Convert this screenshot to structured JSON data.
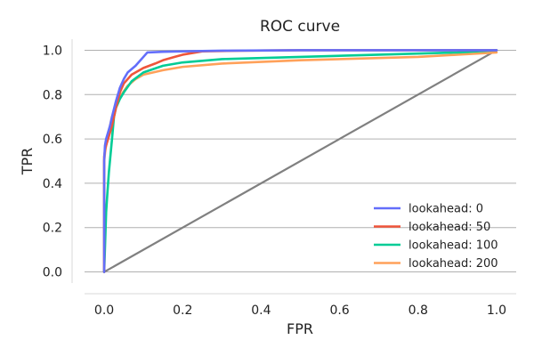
{
  "chart_data": {
    "type": "line",
    "title": "ROC curve",
    "xlabel": "FPR",
    "ylabel": "TPR",
    "xlim": [
      -0.05,
      1.05
    ],
    "ylim": [
      -0.05,
      1.05
    ],
    "x_ticks": [
      "0.0",
      "0.2",
      "0.4",
      "0.6",
      "0.8",
      "1.0"
    ],
    "y_ticks": [
      "0.0",
      "0.2",
      "0.4",
      "0.6",
      "0.8",
      "1.0"
    ],
    "grid": "horizontal",
    "legend_position": "lower-right",
    "series": [
      {
        "name": "lookahead: 0",
        "color": "#636efa",
        "x": [
          0.0,
          0.0,
          0.002,
          0.005,
          0.01,
          0.015,
          0.02,
          0.03,
          0.04,
          0.05,
          0.06,
          0.08,
          0.1,
          0.11,
          0.15,
          0.2,
          0.3,
          0.5,
          0.8,
          1.0
        ],
        "y": [
          0.0,
          0.5,
          0.57,
          0.6,
          0.63,
          0.66,
          0.7,
          0.77,
          0.83,
          0.87,
          0.9,
          0.93,
          0.97,
          0.99,
          0.993,
          0.995,
          0.998,
          1.0,
          1.0,
          1.0
        ]
      },
      {
        "name": "lookahead: 50",
        "color": "#ef553b",
        "x": [
          0.0,
          0.0,
          0.003,
          0.01,
          0.02,
          0.03,
          0.04,
          0.05,
          0.07,
          0.1,
          0.13,
          0.15,
          0.18,
          0.2,
          0.25,
          0.35,
          0.5,
          0.8,
          1.0
        ],
        "y": [
          0.0,
          0.52,
          0.56,
          0.6,
          0.66,
          0.74,
          0.81,
          0.85,
          0.89,
          0.92,
          0.94,
          0.955,
          0.97,
          0.98,
          0.995,
          0.998,
          1.0,
          1.0,
          1.0
        ]
      },
      {
        "name": "lookahead: 100",
        "color": "#00cc96",
        "x": [
          0.0,
          0.005,
          0.008,
          0.012,
          0.02,
          0.025,
          0.03,
          0.04,
          0.05,
          0.07,
          0.1,
          0.15,
          0.2,
          0.3,
          0.5,
          0.7,
          0.9,
          1.0
        ],
        "y": [
          0.0,
          0.27,
          0.35,
          0.45,
          0.6,
          0.7,
          0.74,
          0.78,
          0.81,
          0.86,
          0.9,
          0.93,
          0.945,
          0.96,
          0.97,
          0.98,
          0.99,
          1.0
        ]
      },
      {
        "name": "lookahead: 200",
        "color": "#ffa15a",
        "x": [
          0.0,
          0.0,
          0.003,
          0.01,
          0.02,
          0.03,
          0.04,
          0.06,
          0.08,
          0.1,
          0.15,
          0.2,
          0.3,
          0.5,
          0.7,
          0.8,
          0.9,
          1.0
        ],
        "y": [
          0.0,
          0.5,
          0.55,
          0.62,
          0.7,
          0.75,
          0.79,
          0.84,
          0.87,
          0.89,
          0.91,
          0.925,
          0.94,
          0.955,
          0.965,
          0.97,
          0.98,
          0.99
        ]
      },
      {
        "name": "",
        "color": "#808080",
        "x": [
          0.0,
          1.0
        ],
        "y": [
          0.0,
          1.0
        ]
      }
    ]
  }
}
